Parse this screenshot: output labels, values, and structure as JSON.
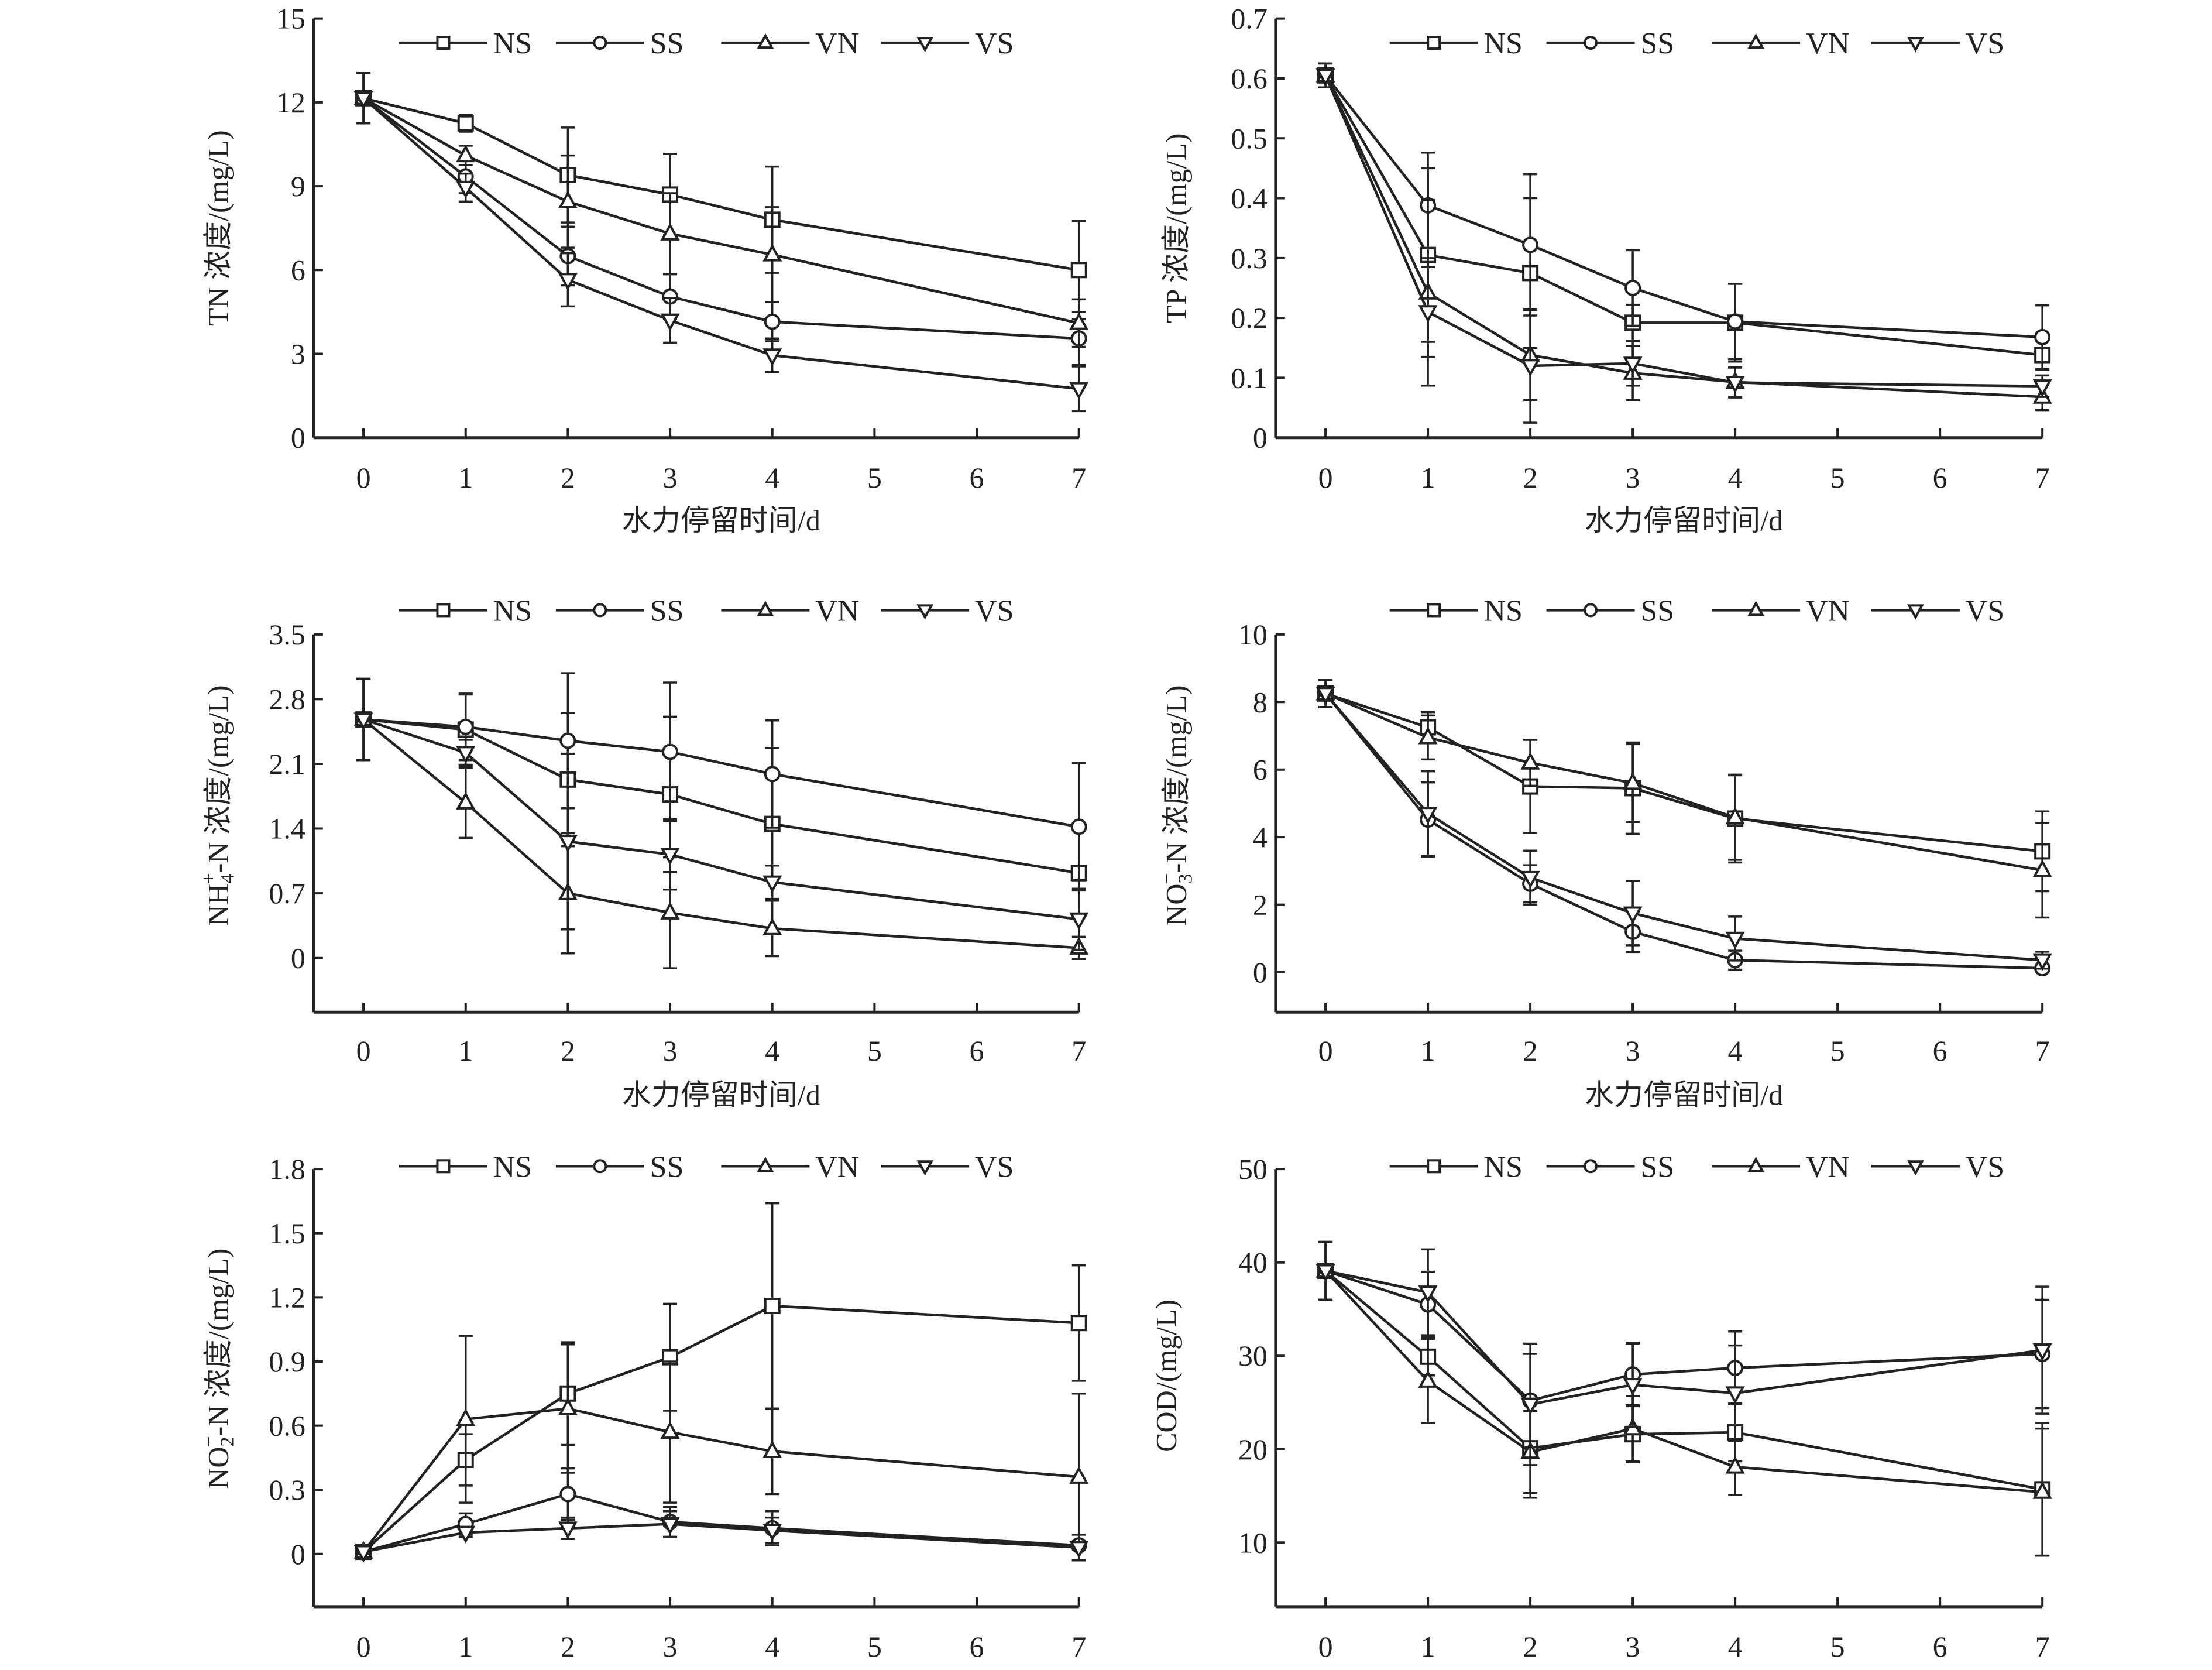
{
  "figure": {
    "legend": [
      "NS",
      "SS",
      "VN",
      "VS"
    ],
    "xlabel": "水力停留时间/d"
  },
  "chart_data": [
    {
      "id": "tn",
      "type": "line",
      "title": "",
      "ylabel": "TN 浓度/(mg/L)",
      "xlabel": "水力停留时间/d",
      "x": [
        0,
        1,
        2,
        3,
        4,
        7
      ],
      "xticks": [
        0,
        1,
        2,
        3,
        4,
        5,
        6,
        7
      ],
      "xlim": [
        -0.5,
        7
      ],
      "ylim": [
        0,
        15
      ],
      "yticks": [
        0,
        3,
        6,
        9,
        12,
        15
      ],
      "ytick_labels": [
        "0",
        "3",
        "6",
        "9",
        "12",
        "15"
      ],
      "legend_position": "top",
      "series": [
        {
          "name": "NS",
          "marker": "square",
          "values": [
            12.15,
            11.25,
            9.4,
            8.7,
            7.8,
            6.0
          ],
          "errors": [
            0.9,
            0.3,
            1.7,
            1.45,
            1.9,
            1.75
          ]
        },
        {
          "name": "SS",
          "marker": "circle",
          "values": [
            12.15,
            9.35,
            6.5,
            5.05,
            4.15,
            3.55
          ],
          "errors": [
            0.9,
            0.6,
            1.05,
            0.8,
            0.7,
            0.95
          ]
        },
        {
          "name": "VN",
          "marker": "triangle-up",
          "values": [
            12.15,
            10.1,
            8.45,
            7.3,
            6.55,
            4.1
          ],
          "errors": [
            0.9,
            0.35,
            1.65,
            1.45,
            1.7,
            0.85
          ]
        },
        {
          "name": "VS",
          "marker": "triangle-down",
          "values": [
            12.15,
            8.95,
            5.65,
            4.2,
            2.95,
            1.75
          ],
          "errors": [
            0.9,
            0.5,
            0.95,
            0.8,
            0.6,
            0.8
          ]
        }
      ]
    },
    {
      "id": "tp",
      "type": "line",
      "title": "",
      "ylabel": "TP 浓度/(mg/L)",
      "xlabel": "水力停留时间/d",
      "x": [
        0,
        1,
        2,
        3,
        4,
        7
      ],
      "xticks": [
        0,
        1,
        2,
        3,
        4,
        5,
        6,
        7
      ],
      "xlim": [
        -0.5,
        7
      ],
      "ylim": [
        0,
        0.7
      ],
      "yticks": [
        0,
        0.1,
        0.2,
        0.3,
        0.4,
        0.5,
        0.6,
        0.7
      ],
      "ytick_labels": [
        "0",
        "0.1",
        "0.2",
        "0.3",
        "0.4",
        "0.5",
        "0.6",
        "0.7"
      ],
      "legend_position": "top",
      "series": [
        {
          "name": "NS",
          "marker": "square",
          "values": [
            0.605,
            0.305,
            0.275,
            0.192,
            0.192,
            0.138
          ],
          "errors": [
            0.02,
            0.145,
            0.125,
            0.03,
            0.065,
            0.025
          ]
        },
        {
          "name": "SS",
          "marker": "circle",
          "values": [
            0.605,
            0.388,
            0.322,
            0.25,
            0.194,
            0.168
          ],
          "errors": [
            0.02,
            0.088,
            0.118,
            0.063,
            0.063,
            0.053
          ]
        },
        {
          "name": "VN",
          "marker": "triangle-up",
          "values": [
            0.605,
            0.242,
            0.138,
            0.108,
            0.093,
            0.068
          ],
          "errors": [
            0.02,
            0.155,
            0.075,
            0.045,
            0.025,
            0.022
          ]
        },
        {
          "name": "VS",
          "marker": "triangle-down",
          "values": [
            0.605,
            0.21,
            0.12,
            0.124,
            0.092,
            0.086
          ],
          "errors": [
            0.02,
            0.075,
            0.095,
            0.037,
            0.025,
            0.018
          ]
        }
      ]
    },
    {
      "id": "nh4",
      "type": "line",
      "title": "",
      "ylabel": "NH4+-N 浓度/(mg/L)",
      "ylabel_parts": {
        "main": "NH",
        "sub": "4",
        "sup": "+",
        "rest": "-N 浓度/(mg/L)"
      },
      "xlabel": "水力停留时间/d",
      "x": [
        0,
        1,
        2,
        3,
        4,
        7
      ],
      "xticks": [
        0,
        1,
        2,
        3,
        4,
        5,
        6,
        7
      ],
      "xlim": [
        -0.5,
        7
      ],
      "ylim": [
        -0.5,
        3.5
      ],
      "yticks": [
        0,
        0.7,
        1.4,
        2.1,
        2.8,
        3.5
      ],
      "ytick_labels": [
        "0",
        "0.7",
        "1.4",
        "2.1",
        "2.8",
        "3.5"
      ],
      "legend_position": "top",
      "series": [
        {
          "name": "NS",
          "marker": "square",
          "values": [
            2.58,
            2.47,
            1.93,
            1.77,
            1.45,
            0.92
          ],
          "errors": [
            0.44,
            0.38,
            0.72,
            0.84,
            0.82,
            0.08
          ]
        },
        {
          "name": "SS",
          "marker": "circle",
          "values": [
            2.58,
            2.5,
            2.35,
            2.23,
            1.99,
            1.42
          ],
          "errors": [
            0.44,
            0.36,
            0.73,
            0.75,
            0.58,
            0.69
          ]
        },
        {
          "name": "VN",
          "marker": "triangle-up",
          "values": [
            2.58,
            1.68,
            0.7,
            0.49,
            0.32,
            0.11
          ],
          "errors": [
            0.44,
            0.38,
            0.65,
            0.6,
            0.3,
            0.12
          ]
        },
        {
          "name": "VS",
          "marker": "triangle-down",
          "values": [
            2.58,
            2.22,
            1.26,
            1.12,
            0.82,
            0.42
          ],
          "errors": [
            0.44,
            0.14,
            0.95,
            0.38,
            0.18,
            0.33
          ]
        }
      ]
    },
    {
      "id": "no3",
      "type": "line",
      "title": "",
      "ylabel": "NO3--N 浓度/(mg/L)",
      "ylabel_parts": {
        "main": "NO",
        "sub": "3",
        "sup": "−",
        "rest": "-N 浓度/(mg/L)"
      },
      "xlabel": "水力停留时间/d",
      "x": [
        0,
        1,
        2,
        3,
        4,
        7
      ],
      "xticks": [
        0,
        1,
        2,
        3,
        4,
        5,
        6,
        7
      ],
      "xlim": [
        -0.5,
        7
      ],
      "ylim": [
        -1,
        10
      ],
      "yticks": [
        0,
        2,
        4,
        6,
        8,
        10
      ],
      "ytick_labels": [
        "0",
        "2",
        "4",
        "6",
        "8",
        "10"
      ],
      "legend_position": "top",
      "series": [
        {
          "name": "NS",
          "marker": "square",
          "values": [
            8.25,
            7.25,
            5.5,
            5.45,
            4.55,
            3.58
          ],
          "errors": [
            0.4,
            0.45,
            1.38,
            1.35,
            1.3,
            1.18
          ]
        },
        {
          "name": "SS",
          "marker": "circle",
          "values": [
            8.25,
            4.52,
            2.62,
            1.2,
            0.36,
            0.12
          ],
          "errors": [
            0.4,
            1.1,
            0.55,
            0.6,
            0.28,
            0.1
          ]
        },
        {
          "name": "VN",
          "marker": "triangle-up",
          "values": [
            8.25,
            6.95,
            6.2,
            5.6,
            4.58,
            3.02
          ],
          "errors": [
            0.4,
            0.65,
            0.68,
            1.15,
            1.25,
            1.4
          ]
        },
        {
          "name": "VS",
          "marker": "triangle-down",
          "values": [
            8.25,
            4.7,
            2.8,
            1.75,
            1.0,
            0.36
          ],
          "errors": [
            0.4,
            1.25,
            0.8,
            0.95,
            0.65,
            0.25
          ]
        }
      ]
    },
    {
      "id": "no2",
      "type": "line",
      "title": "",
      "ylabel": "NO2--N 浓度/(mg/L)",
      "ylabel_parts": {
        "main": "NO",
        "sub": "2",
        "sup": "−",
        "rest": "-N 浓度/(mg/L)"
      },
      "xlabel": "水力停留时间/d",
      "x": [
        0,
        1,
        2,
        3,
        4,
        7
      ],
      "xticks": [
        0,
        1,
        2,
        3,
        4,
        5,
        6,
        7
      ],
      "xlim": [
        -0.5,
        7
      ],
      "ylim": [
        -0.15,
        1.8
      ],
      "yticks": [
        0,
        0.3,
        0.6,
        0.9,
        1.2,
        1.5,
        1.8
      ],
      "ytick_labels": [
        "0",
        "0.3",
        "0.6",
        "0.9",
        "1.2",
        "1.5",
        "1.8"
      ],
      "legend_position": "top",
      "series": [
        {
          "name": "NS",
          "marker": "square",
          "values": [
            0.01,
            0.44,
            0.75,
            0.92,
            1.16,
            1.08
          ],
          "errors": [
            0.01,
            0.12,
            0.24,
            0.25,
            0.48,
            0.27
          ]
        },
        {
          "name": "SS",
          "marker": "circle",
          "values": [
            0.01,
            0.14,
            0.28,
            0.15,
            0.12,
            0.04
          ],
          "errors": [
            0.01,
            0.05,
            0.12,
            0.07,
            0.08,
            0.02
          ]
        },
        {
          "name": "VN",
          "marker": "triangle-up",
          "values": [
            0.01,
            0.63,
            0.68,
            0.57,
            0.48,
            0.36
          ],
          "errors": [
            0.01,
            0.39,
            0.3,
            0.33,
            0.2,
            0.39
          ]
        },
        {
          "name": "VS",
          "marker": "triangle-down",
          "values": [
            0.01,
            0.1,
            0.12,
            0.14,
            0.11,
            0.03
          ],
          "errors": [
            0.01,
            0.02,
            0.05,
            0.06,
            0.06,
            0.06
          ]
        }
      ]
    },
    {
      "id": "cod",
      "type": "line",
      "title": "",
      "ylabel": "COD/(mg/L)",
      "xlabel": "水力停留时间/d",
      "x": [
        0,
        1,
        2,
        3,
        4,
        7
      ],
      "xticks": [
        0,
        1,
        2,
        3,
        4,
        5,
        6,
        7
      ],
      "xlim": [
        -0.5,
        7
      ],
      "ylim": [
        5,
        50
      ],
      "yticks": [
        10,
        20,
        30,
        40,
        50
      ],
      "ytick_labels": [
        "10",
        "20",
        "30",
        "40",
        "50"
      ],
      "legend_position": "top",
      "series": [
        {
          "name": "NS",
          "marker": "square",
          "values": [
            39.1,
            29.9,
            20.1,
            21.6,
            21.8,
            15.7
          ],
          "errors": [
            3.1,
            2.0,
            5.3,
            3.0,
            3.1,
            7.1
          ]
        },
        {
          "name": "SS",
          "marker": "circle",
          "values": [
            39.1,
            35.5,
            25.2,
            28.0,
            28.7,
            30.2
          ],
          "errors": [
            3.1,
            3.5,
            5.0,
            3.3,
            3.9,
            5.8
          ]
        },
        {
          "name": "VN",
          "marker": "triangle-up",
          "values": [
            39.1,
            27.3,
            19.7,
            22.2,
            18.1,
            15.4
          ],
          "errors": [
            3.1,
            4.5,
            4.4,
            3.5,
            3.0,
            6.8
          ]
        },
        {
          "name": "VS",
          "marker": "triangle-down",
          "values": [
            39.1,
            36.8,
            24.8,
            26.9,
            26.0,
            30.6
          ],
          "errors": [
            3.1,
            4.6,
            6.5,
            4.5,
            5.1,
            6.8
          ]
        }
      ]
    }
  ]
}
